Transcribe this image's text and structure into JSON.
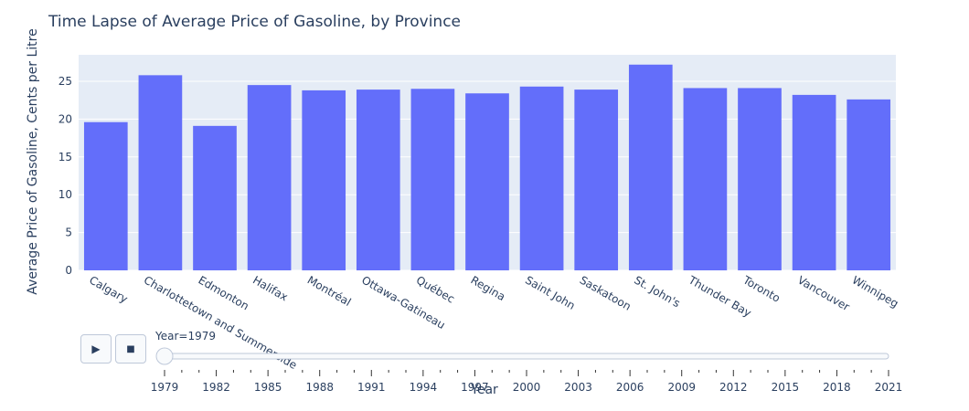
{
  "chart_data": {
    "type": "bar",
    "title": "Time Lapse of Average Price of Gasoline, by Province",
    "ylabel": "Average Price of Gasoline, Cents per Litre",
    "categories": [
      "Calgary",
      "Charlottetown and Summerside",
      "Edmonton",
      "Halifax",
      "Montréal",
      "Ottawa-Gatineau",
      "Québec",
      "Regina",
      "Saint John",
      "Saskatoon",
      "St. John's",
      "Thunder Bay",
      "Toronto",
      "Vancouver",
      "Winnipeg"
    ],
    "values": [
      19.6,
      25.8,
      19.1,
      24.5,
      23.8,
      23.9,
      24.0,
      23.4,
      24.3,
      23.9,
      27.2,
      24.1,
      24.1,
      23.2,
      22.6
    ],
    "ylim": [
      0,
      28.5
    ],
    "yticks": [
      0,
      5,
      10,
      15,
      20,
      25
    ],
    "color": "#636efa",
    "plot_bg": "#e5ecf6",
    "grid": true
  },
  "slider": {
    "current_label": "Year=1979",
    "xlabel": "Year",
    "range": [
      1979,
      2021
    ],
    "value": 1979,
    "tick_labels": [
      "1979",
      "1982",
      "1985",
      "1988",
      "1991",
      "1994",
      "1997",
      "2000",
      "2003",
      "2006",
      "2009",
      "2012",
      "2015",
      "2018",
      "2021"
    ]
  },
  "controls": {
    "play_icon": "play-icon",
    "stop_icon": "stop-icon"
  }
}
